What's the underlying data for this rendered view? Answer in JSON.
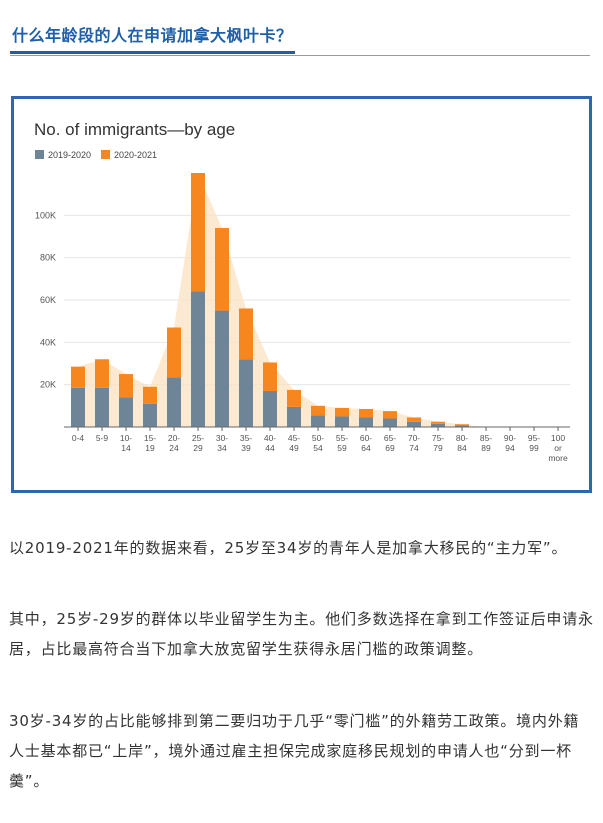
{
  "article": {
    "heading": "什么年龄段的人在申请加拿大枫叶卡？",
    "paragraphs": [
      "以2019-2021年的数据来看，25岁至34岁的青年人是加拿大移民的“主力军”。",
      "其中，25岁-29岁的群体以毕业留学生为主。他们多数选择在拿到工作签证后申请永居，占比最高符合当下加拿大放宽留学生获得永居门槛的政策调整。",
      "30岁-34岁的占比能够排到第二要归功于几乎“零门槛”的外籍劳工政策。境内外籍人士基本都已“上岸”，境外通过雇主担保完成家庭移民规划的申请人也“分到一杯羹”。"
    ]
  },
  "colors": {
    "heading": "#1f5fa8",
    "frame": "#2d67b0",
    "series_2019": "#6d8596",
    "series_2020": "#f7861e",
    "area": "#fbe3c5"
  },
  "chart_data": {
    "type": "bar",
    "stacked": true,
    "title": "No. of immigrants—by age",
    "legend_position": "top-left",
    "grid": true,
    "categories": [
      [
        "0-4"
      ],
      [
        "5-9"
      ],
      [
        "10-",
        "14"
      ],
      [
        "15-",
        "19"
      ],
      [
        "20-",
        "24"
      ],
      [
        "25-",
        "29"
      ],
      [
        "30-",
        "34"
      ],
      [
        "35-",
        "39"
      ],
      [
        "40-",
        "44"
      ],
      [
        "45-",
        "49"
      ],
      [
        "50-",
        "54"
      ],
      [
        "55-",
        "59"
      ],
      [
        "60-",
        "64"
      ],
      [
        "65-",
        "69"
      ],
      [
        "70-",
        "74"
      ],
      [
        "75-",
        "79"
      ],
      [
        "80-",
        "84"
      ],
      [
        "85-",
        "89"
      ],
      [
        "90-",
        "94"
      ],
      [
        "95-",
        "99"
      ],
      [
        "100",
        "or",
        "more"
      ]
    ],
    "series": [
      {
        "name": "2019-2020",
        "values": [
          18500,
          18500,
          14000,
          11000,
          23500,
          64000,
          55000,
          32000,
          17000,
          9500,
          5500,
          5000,
          4500,
          4000,
          2500,
          1500,
          800,
          0,
          0,
          0,
          0
        ]
      },
      {
        "name": "2020-2021",
        "values": [
          10000,
          13500,
          11000,
          8000,
          23500,
          56000,
          39000,
          24000,
          13500,
          8000,
          4500,
          4000,
          4000,
          3500,
          2000,
          1000,
          500,
          0,
          0,
          0,
          0
        ]
      }
    ],
    "y_ticks": [
      "20K",
      "40K",
      "60K",
      "80K",
      "100K"
    ],
    "y_tick_values": [
      20000,
      40000,
      60000,
      80000,
      100000
    ],
    "ylim": [
      0,
      120000
    ]
  }
}
